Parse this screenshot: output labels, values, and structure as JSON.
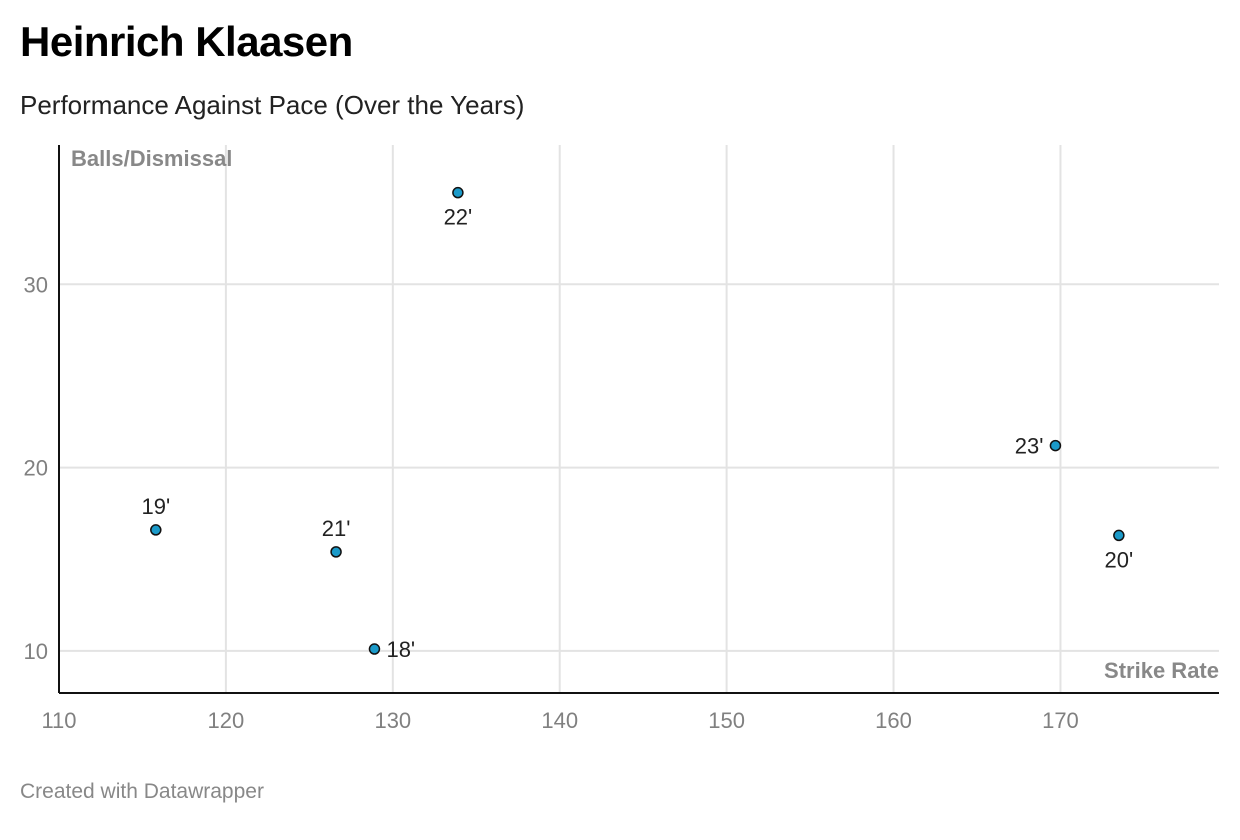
{
  "header": {
    "title": "Heinrich Klaasen",
    "subtitle": "Performance Against Pace (Over the Years)"
  },
  "footer": {
    "credit": "Created with Datawrapper"
  },
  "colors": {
    "point_fill": "#1b9ac9",
    "point_stroke": "#111111",
    "grid": "#e3e3e3",
    "axis": "#111111"
  },
  "chart_data": {
    "type": "scatter",
    "title": "Heinrich Klaasen",
    "subtitle": "Performance Against Pace (Over the Years)",
    "xlabel": "Strike Rate",
    "ylabel": "Balls/Dismissal",
    "xlim": [
      110,
      179.5
    ],
    "ylim": [
      7.7,
      37.6
    ],
    "xticks": [
      110,
      120,
      130,
      140,
      150,
      160,
      170
    ],
    "yticks": [
      10,
      20,
      30
    ],
    "grid": true,
    "points": [
      {
        "label": "18'",
        "x": 128.9,
        "y": 10.1,
        "label_pos": "right"
      },
      {
        "label": "19'",
        "x": 115.8,
        "y": 16.6,
        "label_pos": "top"
      },
      {
        "label": "20'",
        "x": 173.5,
        "y": 16.3,
        "label_pos": "bottom"
      },
      {
        "label": "21'",
        "x": 126.6,
        "y": 15.4,
        "label_pos": "top"
      },
      {
        "label": "22'",
        "x": 133.9,
        "y": 35.0,
        "label_pos": "bottom"
      },
      {
        "label": "23'",
        "x": 169.7,
        "y": 21.2,
        "label_pos": "left"
      }
    ]
  }
}
